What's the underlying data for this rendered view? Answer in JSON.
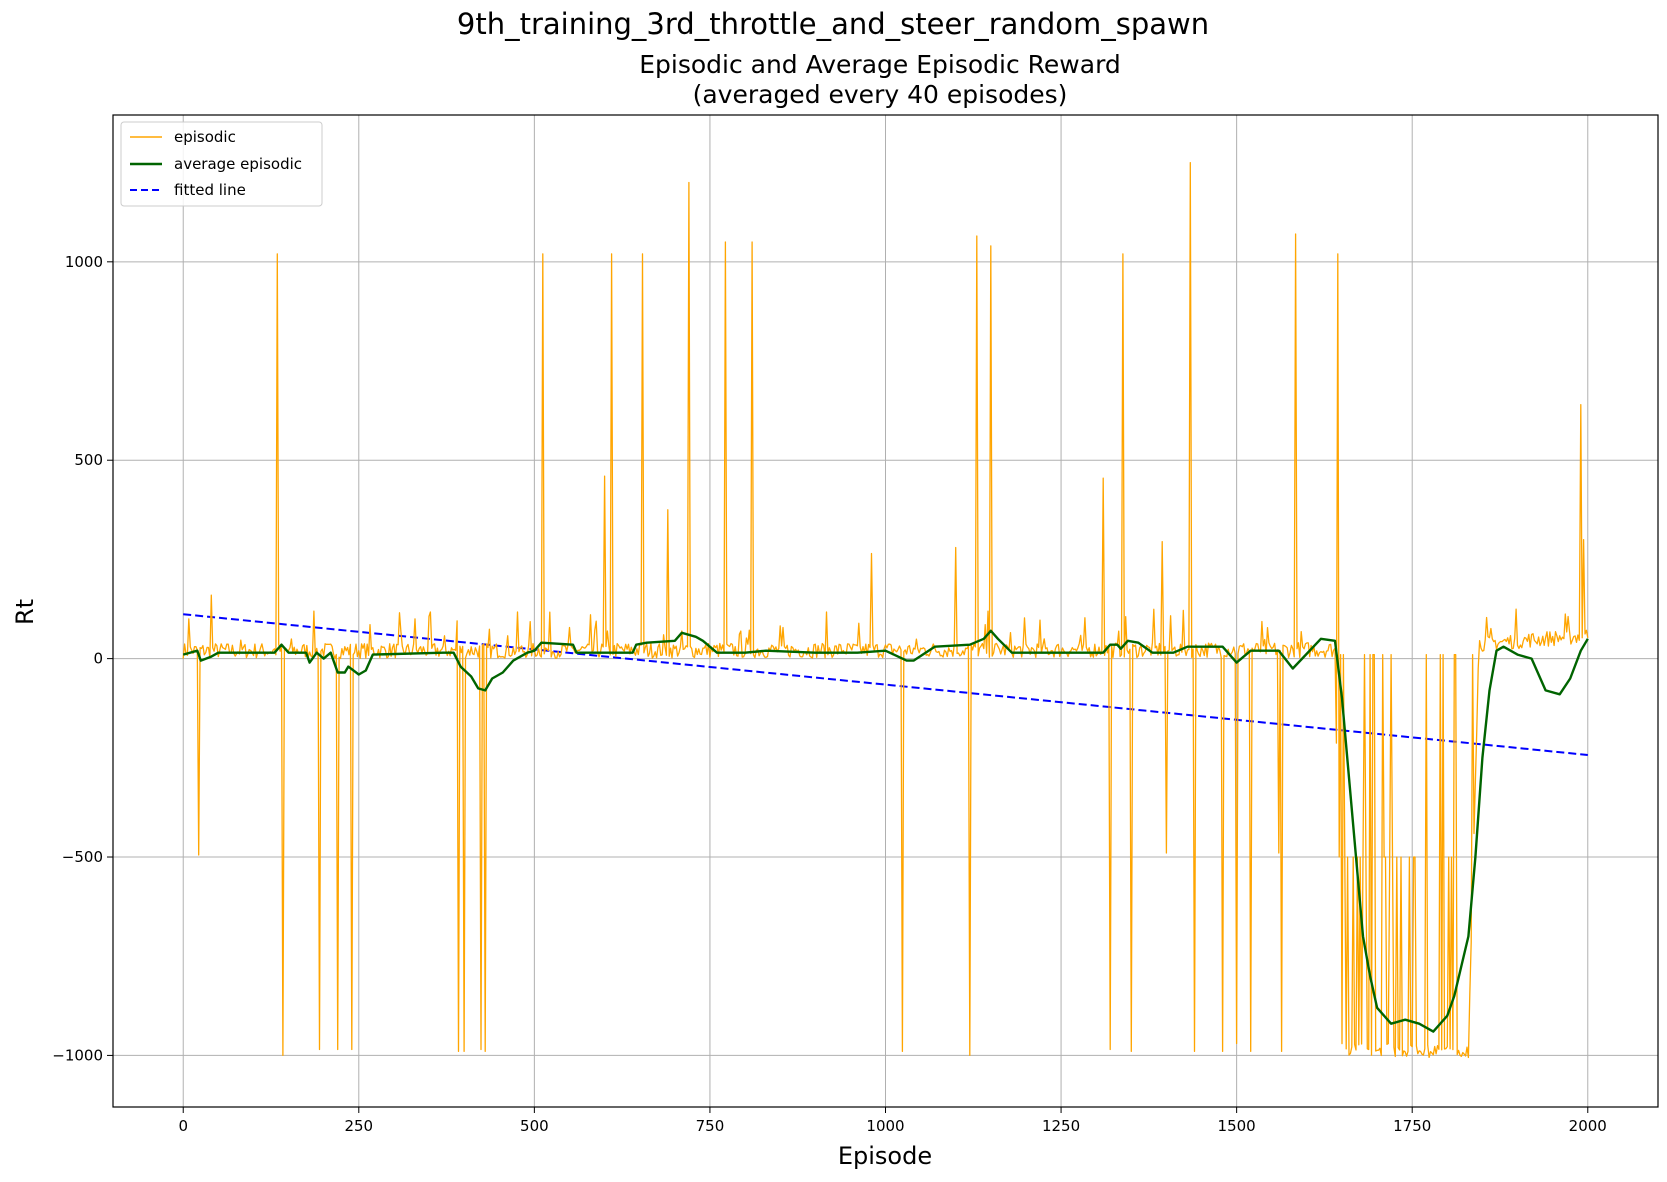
{
  "figure": {
    "suptitle": "9th_training_3rd_throttle_and_steer_random_spawn"
  },
  "chart_data": {
    "type": "line",
    "title_line1": "Episodic and Average Episodic Reward",
    "title_line2": "(averaged every 40 episodes)",
    "xlabel": "Episode",
    "ylabel": "Rt",
    "xlim": [
      -100,
      2100
    ],
    "ylim": [
      -1130,
      1370
    ],
    "xticks": [
      0,
      250,
      500,
      750,
      1000,
      1250,
      1500,
      1750,
      2000
    ],
    "yticks": [
      -1000,
      -500,
      0,
      500,
      1000
    ],
    "ytick_labels": [
      "−1000",
      "−500",
      "0",
      "500",
      "1000"
    ],
    "grid": true,
    "legend": {
      "position": "top-left",
      "entries": [
        "episodic",
        "average episodic",
        "fitted line"
      ]
    },
    "colors": {
      "episodic": "#ffa500",
      "average": "#006400",
      "fitted": "#0000ff"
    },
    "series": [
      {
        "name": "episodic",
        "style": "solid",
        "baseline": [
          [
            0,
            12
          ],
          [
            1640,
            15
          ],
          [
            1648,
            -950
          ],
          [
            1830,
            -960
          ],
          [
            1845,
            30
          ],
          [
            2000,
            50
          ]
        ],
        "spikes": [
          [
            8,
            100
          ],
          [
            22,
            -495
          ],
          [
            40,
            160
          ],
          [
            135,
            1020
          ],
          [
            142,
            -1000
          ],
          [
            195,
            -985
          ],
          [
            220,
            -985
          ],
          [
            240,
            -985
          ],
          [
            330,
            100
          ],
          [
            390,
            95
          ],
          [
            392,
            -990
          ],
          [
            400,
            -990
          ],
          [
            425,
            -985
          ],
          [
            430,
            -990
          ],
          [
            513,
            1020
          ],
          [
            600,
            460
          ],
          [
            610,
            1020
          ],
          [
            655,
            1020
          ],
          [
            690,
            375
          ],
          [
            720,
            1200
          ],
          [
            773,
            1050
          ],
          [
            810,
            1050
          ],
          [
            980,
            265
          ],
          [
            1025,
            -990
          ],
          [
            1100,
            280
          ],
          [
            1120,
            -1000
          ],
          [
            1130,
            1065
          ],
          [
            1150,
            1040
          ],
          [
            1310,
            455
          ],
          [
            1320,
            -985
          ],
          [
            1338,
            1020
          ],
          [
            1350,
            -990
          ],
          [
            1395,
            295
          ],
          [
            1400,
            -490
          ],
          [
            1435,
            1250
          ],
          [
            1440,
            -990
          ],
          [
            1480,
            -990
          ],
          [
            1500,
            -970
          ],
          [
            1520,
            -990
          ],
          [
            1560,
            -490
          ],
          [
            1565,
            -990
          ],
          [
            1585,
            1070
          ],
          [
            1645,
            1020
          ],
          [
            1990,
            640
          ],
          [
            1995,
            300
          ]
        ]
      },
      {
        "name": "average episodic",
        "style": "solid",
        "points": [
          [
            0,
            10
          ],
          [
            20,
            20
          ],
          [
            25,
            -5
          ],
          [
            40,
            5
          ],
          [
            50,
            15
          ],
          [
            130,
            15
          ],
          [
            140,
            35
          ],
          [
            150,
            15
          ],
          [
            175,
            15
          ],
          [
            180,
            -10
          ],
          [
            190,
            15
          ],
          [
            200,
            0
          ],
          [
            210,
            15
          ],
          [
            220,
            -35
          ],
          [
            230,
            -35
          ],
          [
            235,
            -20
          ],
          [
            250,
            -40
          ],
          [
            260,
            -30
          ],
          [
            270,
            10
          ],
          [
            370,
            15
          ],
          [
            385,
            15
          ],
          [
            395,
            -20
          ],
          [
            410,
            -45
          ],
          [
            420,
            -75
          ],
          [
            430,
            -80
          ],
          [
            440,
            -50
          ],
          [
            455,
            -35
          ],
          [
            470,
            -5
          ],
          [
            490,
            15
          ],
          [
            500,
            20
          ],
          [
            510,
            40
          ],
          [
            555,
            35
          ],
          [
            560,
            15
          ],
          [
            640,
            15
          ],
          [
            645,
            35
          ],
          [
            660,
            40
          ],
          [
            700,
            45
          ],
          [
            710,
            65
          ],
          [
            730,
            55
          ],
          [
            740,
            45
          ],
          [
            760,
            15
          ],
          [
            800,
            15
          ],
          [
            830,
            20
          ],
          [
            900,
            15
          ],
          [
            960,
            15
          ],
          [
            1000,
            20
          ],
          [
            1030,
            -5
          ],
          [
            1040,
            -5
          ],
          [
            1070,
            30
          ],
          [
            1120,
            35
          ],
          [
            1140,
            50
          ],
          [
            1150,
            70
          ],
          [
            1160,
            50
          ],
          [
            1180,
            15
          ],
          [
            1310,
            15
          ],
          [
            1320,
            35
          ],
          [
            1330,
            35
          ],
          [
            1335,
            25
          ],
          [
            1345,
            45
          ],
          [
            1360,
            40
          ],
          [
            1380,
            15
          ],
          [
            1410,
            15
          ],
          [
            1430,
            30
          ],
          [
            1480,
            30
          ],
          [
            1500,
            -10
          ],
          [
            1510,
            5
          ],
          [
            1520,
            20
          ],
          [
            1560,
            20
          ],
          [
            1580,
            -25
          ],
          [
            1620,
            50
          ],
          [
            1640,
            45
          ],
          [
            1650,
            -100
          ],
          [
            1660,
            -300
          ],
          [
            1670,
            -500
          ],
          [
            1680,
            -700
          ],
          [
            1690,
            -800
          ],
          [
            1700,
            -880
          ],
          [
            1720,
            -920
          ],
          [
            1740,
            -910
          ],
          [
            1760,
            -920
          ],
          [
            1780,
            -940
          ],
          [
            1800,
            -900
          ],
          [
            1810,
            -850
          ],
          [
            1830,
            -700
          ],
          [
            1840,
            -500
          ],
          [
            1850,
            -250
          ],
          [
            1860,
            -80
          ],
          [
            1870,
            20
          ],
          [
            1880,
            30
          ],
          [
            1900,
            10
          ],
          [
            1920,
            0
          ],
          [
            1940,
            -80
          ],
          [
            1960,
            -90
          ],
          [
            1975,
            -50
          ],
          [
            1990,
            20
          ],
          [
            2000,
            50
          ]
        ]
      },
      {
        "name": "fitted line",
        "style": "dashed",
        "points": [
          [
            0,
            112
          ],
          [
            2000,
            -243
          ]
        ]
      }
    ]
  }
}
